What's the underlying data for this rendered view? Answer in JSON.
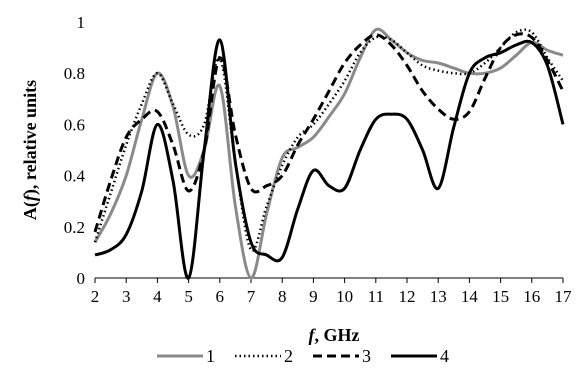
{
  "chart_data": {
    "type": "line",
    "xlabel_var": "f",
    "xlabel_rest": ", GHz",
    "ylabel_pre": "A(",
    "ylabel_var": "f",
    "ylabel_rest": "), relative units",
    "xlim": [
      2,
      17
    ],
    "ylim": [
      0,
      1
    ],
    "xticks": [
      2,
      3,
      4,
      5,
      6,
      7,
      8,
      9,
      10,
      11,
      12,
      13,
      14,
      15,
      16,
      17
    ],
    "yticks": [
      "0",
      "0.2",
      "0.4",
      "0.6",
      "0.8",
      "1"
    ],
    "grid": false,
    "legend_position": "bottom",
    "series": [
      {
        "name": "1",
        "color": "#8a8a8a",
        "style": "solid",
        "x": [
          2,
          2.5,
          3,
          3.5,
          4,
          4.5,
          5,
          5.5,
          6,
          6.5,
          7,
          7.5,
          8,
          8.5,
          9,
          9.5,
          10,
          10.5,
          11,
          11.5,
          12,
          12.5,
          13,
          13.5,
          14,
          14.5,
          15,
          15.5,
          16,
          16.5,
          17
        ],
        "y": [
          0.14,
          0.25,
          0.4,
          0.62,
          0.8,
          0.67,
          0.4,
          0.5,
          0.75,
          0.28,
          0.0,
          0.25,
          0.47,
          0.51,
          0.55,
          0.63,
          0.72,
          0.86,
          0.97,
          0.93,
          0.88,
          0.85,
          0.84,
          0.82,
          0.8,
          0.8,
          0.82,
          0.87,
          0.92,
          0.89,
          0.87
        ]
      },
      {
        "name": "2",
        "color": "#000000",
        "style": "dotted",
        "x": [
          2,
          2.5,
          3,
          3.5,
          4,
          4.5,
          5,
          5.5,
          6,
          6.5,
          7,
          7.5,
          8,
          8.5,
          9,
          9.5,
          10,
          10.5,
          11,
          11.5,
          12,
          12.5,
          13,
          13.5,
          14,
          14.5,
          15,
          15.5,
          16,
          16.5,
          17
        ],
        "y": [
          0.14,
          0.33,
          0.52,
          0.68,
          0.8,
          0.68,
          0.56,
          0.6,
          0.86,
          0.45,
          0.11,
          0.28,
          0.44,
          0.55,
          0.6,
          0.68,
          0.77,
          0.88,
          0.94,
          0.93,
          0.88,
          0.83,
          0.81,
          0.8,
          0.8,
          0.84,
          0.9,
          0.96,
          0.96,
          0.86,
          0.77
        ]
      },
      {
        "name": "3",
        "color": "#000000",
        "style": "dashed",
        "x": [
          2,
          2.5,
          3,
          3.5,
          4,
          4.5,
          5,
          5.5,
          6,
          6.5,
          7,
          7.5,
          8,
          8.5,
          9,
          9.5,
          10,
          10.5,
          11,
          11.5,
          12,
          12.5,
          13,
          13.5,
          14,
          14.5,
          15,
          15.5,
          16,
          16.5,
          17
        ],
        "y": [
          0.18,
          0.38,
          0.55,
          0.62,
          0.65,
          0.52,
          0.34,
          0.5,
          0.86,
          0.56,
          0.35,
          0.36,
          0.4,
          0.52,
          0.62,
          0.73,
          0.84,
          0.91,
          0.95,
          0.91,
          0.83,
          0.73,
          0.66,
          0.62,
          0.65,
          0.78,
          0.9,
          0.95,
          0.94,
          0.85,
          0.73
        ]
      },
      {
        "name": "4",
        "color": "#000000",
        "style": "solid",
        "x": [
          2,
          2.5,
          3,
          3.5,
          4,
          4.5,
          5,
          5.5,
          6,
          6.5,
          7,
          7.5,
          8,
          8.5,
          9,
          9.5,
          10,
          10.5,
          11,
          11.5,
          12,
          12.5,
          13,
          13.5,
          14,
          14.5,
          15,
          15.5,
          16,
          16.5,
          17
        ],
        "y": [
          0.09,
          0.11,
          0.17,
          0.34,
          0.6,
          0.38,
          0.0,
          0.5,
          0.93,
          0.45,
          0.14,
          0.09,
          0.08,
          0.27,
          0.42,
          0.36,
          0.35,
          0.5,
          0.62,
          0.64,
          0.62,
          0.5,
          0.35,
          0.59,
          0.8,
          0.86,
          0.88,
          0.91,
          0.92,
          0.83,
          0.6
        ]
      }
    ]
  }
}
